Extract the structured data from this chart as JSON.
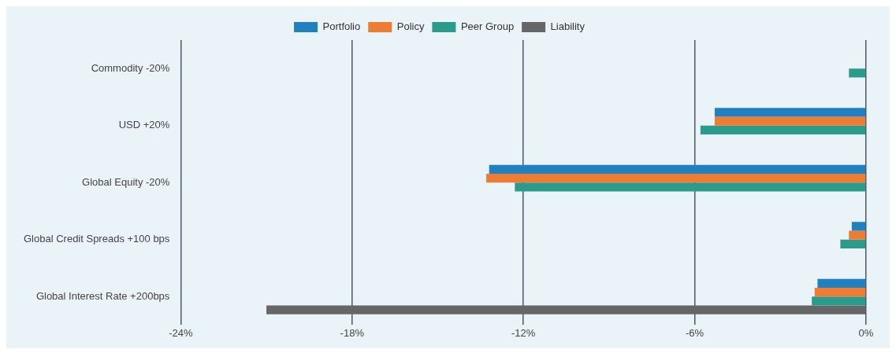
{
  "chart_data": {
    "type": "bar",
    "orientation": "horizontal",
    "categories": [
      "Commodity -20%",
      "USD +20%",
      "Global Equity -20%",
      "Global Credit Spreads +100 bps",
      "Global Interest Rate +200bps"
    ],
    "series": [
      {
        "name": "Portfolio",
        "color": "#2180c0",
        "values": [
          null,
          -5.3,
          -13.2,
          -0.5,
          -1.7
        ]
      },
      {
        "name": "Policy",
        "color": "#ee7d33",
        "values": [
          null,
          -5.3,
          -13.3,
          -0.6,
          -1.8
        ]
      },
      {
        "name": "Peer Group",
        "color": "#2b9c8c",
        "values": [
          -0.6,
          -5.8,
          -12.3,
          -0.9,
          -1.9
        ]
      },
      {
        "name": "Liability",
        "color": "#666666",
        "values": [
          null,
          null,
          null,
          null,
          -21.0
        ]
      }
    ],
    "xlim": [
      -24,
      0
    ],
    "xticks": [
      {
        "value": -24,
        "label": "-24%"
      },
      {
        "value": -18,
        "label": "-18%"
      },
      {
        "value": -12,
        "label": "-12%"
      },
      {
        "value": -6,
        "label": "-6%"
      },
      {
        "value": 0,
        "label": "0%"
      }
    ],
    "grid": "x",
    "legend": "top"
  }
}
